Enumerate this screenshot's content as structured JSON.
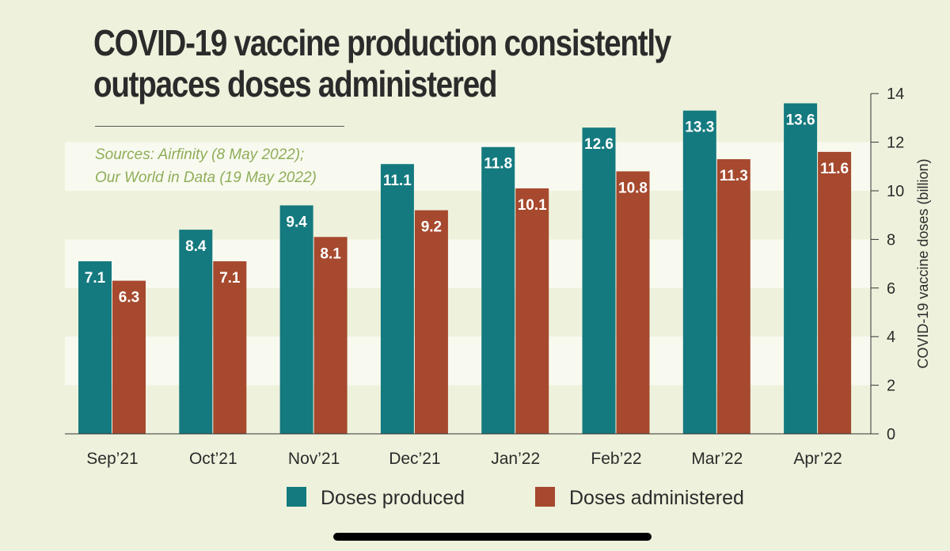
{
  "title": "COVID-19 vaccine production consistently outpaces doses administered",
  "colors": {
    "background": "#eef2dc",
    "band": "#f8faf0",
    "produced": "#147a7f",
    "administered": "#a6492e",
    "sources": "#8fad58",
    "text": "#2b2b2b"
  },
  "chart_data": {
    "type": "bar",
    "title": "COVID-19 vaccine production consistently outpaces doses administered",
    "sources": [
      "Sources: Airfinity (8 May 2022);",
      "Our World in Data (19 May 2022)"
    ],
    "categories": [
      "Sep’21",
      "Oct’21",
      "Nov’21",
      "Dec’21",
      "Jan’22",
      "Feb’22",
      "Mar’22",
      "Apr’22"
    ],
    "series": [
      {
        "name": "Doses produced",
        "color": "#147a7f",
        "values": [
          7.1,
          8.4,
          9.4,
          11.1,
          11.8,
          12.6,
          13.3,
          13.6
        ]
      },
      {
        "name": "Doses administered",
        "color": "#a6492e",
        "values": [
          6.3,
          7.1,
          8.1,
          9.2,
          10.1,
          10.8,
          11.3,
          11.6
        ]
      }
    ],
    "ylabel": "COVID-19 vaccine doses (billion)",
    "ylim": [
      0,
      14
    ],
    "yticks": [
      0,
      2,
      4,
      6,
      8,
      10,
      12,
      14
    ],
    "y_axis_side": "right",
    "legend_position": "bottom",
    "data_labels": true
  }
}
